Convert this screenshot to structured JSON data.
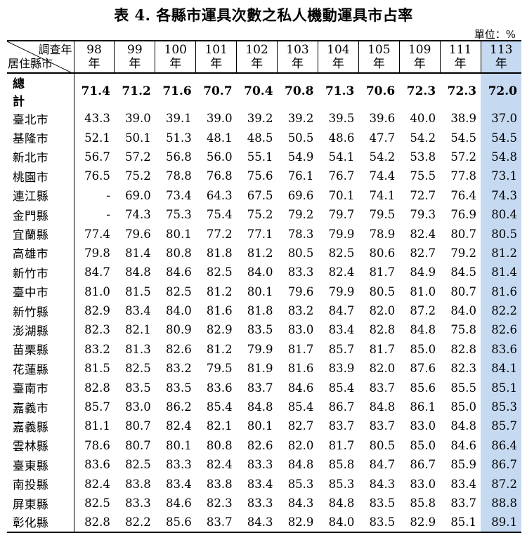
{
  "title": "表 4.  各縣市運具次數之私人機動運具市占率",
  "unit": "單位：%",
  "corner": {
    "top": "調查年",
    "bottom": "居住縣市"
  },
  "years": [
    [
      "98",
      "年"
    ],
    [
      "99",
      "年"
    ],
    [
      "100",
      "年"
    ],
    [
      "101",
      "年"
    ],
    [
      "102",
      "年"
    ],
    [
      "103",
      "年"
    ],
    [
      "104",
      "年"
    ],
    [
      "105",
      "年"
    ],
    [
      "109",
      "年"
    ],
    [
      "111",
      "年"
    ],
    [
      "113",
      "年"
    ]
  ],
  "highlight_color": "#c5d9f1",
  "rows": [
    {
      "label": "總　計",
      "values": [
        "71.4",
        "71.2",
        "71.6",
        "70.7",
        "70.4",
        "70.8",
        "71.3",
        "70.6",
        "72.3",
        "72.3",
        "72.0"
      ]
    },
    {
      "label": "臺北市",
      "values": [
        "43.3",
        "39.0",
        "39.1",
        "39.0",
        "39.2",
        "39.2",
        "39.5",
        "39.6",
        "40.0",
        "38.9",
        "37.0"
      ]
    },
    {
      "label": "基隆市",
      "values": [
        "52.1",
        "50.1",
        "51.3",
        "48.1",
        "48.5",
        "50.5",
        "48.6",
        "47.7",
        "54.2",
        "54.5",
        "54.5"
      ]
    },
    {
      "label": "新北市",
      "values": [
        "56.7",
        "57.2",
        "56.8",
        "56.0",
        "55.1",
        "54.9",
        "54.1",
        "54.2",
        "53.8",
        "57.2",
        "54.8"
      ]
    },
    {
      "label": "桃園市",
      "values": [
        "76.5",
        "75.2",
        "78.8",
        "76.8",
        "75.6",
        "76.1",
        "76.7",
        "74.4",
        "75.5",
        "77.8",
        "73.1"
      ]
    },
    {
      "label": "連江縣",
      "values": [
        "-",
        "69.0",
        "73.4",
        "64.3",
        "67.5",
        "69.6",
        "70.1",
        "74.1",
        "72.7",
        "76.4",
        "74.3"
      ]
    },
    {
      "label": "金門縣",
      "values": [
        "-",
        "74.3",
        "75.3",
        "75.4",
        "75.2",
        "79.2",
        "79.7",
        "79.5",
        "79.3",
        "76.9",
        "80.4"
      ]
    },
    {
      "label": "宜蘭縣",
      "values": [
        "77.4",
        "79.6",
        "80.1",
        "77.2",
        "77.1",
        "78.3",
        "79.9",
        "78.9",
        "82.4",
        "80.7",
        "80.5"
      ]
    },
    {
      "label": "高雄市",
      "values": [
        "79.8",
        "81.4",
        "80.8",
        "81.8",
        "81.2",
        "80.5",
        "82.5",
        "80.6",
        "82.7",
        "79.2",
        "81.2"
      ]
    },
    {
      "label": "新竹市",
      "values": [
        "84.7",
        "84.8",
        "84.6",
        "82.5",
        "84.0",
        "83.3",
        "82.4",
        "81.7",
        "84.9",
        "84.5",
        "81.4"
      ]
    },
    {
      "label": "臺中市",
      "values": [
        "81.0",
        "81.5",
        "82.5",
        "81.2",
        "80.1",
        "79.6",
        "79.9",
        "80.5",
        "81.0",
        "80.7",
        "81.6"
      ]
    },
    {
      "label": "新竹縣",
      "values": [
        "82.9",
        "83.4",
        "84.0",
        "81.6",
        "81.8",
        "83.2",
        "84.7",
        "82.0",
        "87.2",
        "84.0",
        "82.2"
      ]
    },
    {
      "label": "澎湖縣",
      "values": [
        "82.3",
        "82.1",
        "80.9",
        "82.9",
        "83.5",
        "83.0",
        "83.4",
        "82.8",
        "84.8",
        "75.8",
        "82.6"
      ]
    },
    {
      "label": "苗栗縣",
      "values": [
        "83.2",
        "81.3",
        "82.6",
        "81.2",
        "79.9",
        "81.7",
        "85.7",
        "81.7",
        "85.0",
        "82.8",
        "83.6"
      ]
    },
    {
      "label": "花蓮縣",
      "values": [
        "81.5",
        "82.5",
        "83.2",
        "79.5",
        "81.9",
        "81.6",
        "83.9",
        "82.0",
        "87.6",
        "82.3",
        "84.1"
      ]
    },
    {
      "label": "臺南市",
      "values": [
        "82.8",
        "83.5",
        "83.5",
        "83.6",
        "83.7",
        "84.6",
        "85.4",
        "83.7",
        "85.6",
        "85.5",
        "85.1"
      ]
    },
    {
      "label": "嘉義市",
      "values": [
        "85.7",
        "83.0",
        "86.2",
        "85.4",
        "84.8",
        "85.4",
        "86.7",
        "84.8",
        "86.1",
        "85.0",
        "85.3"
      ]
    },
    {
      "label": "嘉義縣",
      "values": [
        "81.1",
        "80.7",
        "82.4",
        "82.1",
        "80.1",
        "82.7",
        "83.7",
        "83.7",
        "83.0",
        "84.8",
        "85.7"
      ]
    },
    {
      "label": "雲林縣",
      "values": [
        "78.6",
        "80.7",
        "80.1",
        "80.8",
        "82.6",
        "82.0",
        "81.7",
        "80.5",
        "85.0",
        "84.6",
        "86.4"
      ]
    },
    {
      "label": "臺東縣",
      "values": [
        "83.6",
        "82.5",
        "83.3",
        "82.4",
        "83.3",
        "84.8",
        "85.8",
        "84.7",
        "86.7",
        "85.9",
        "86.7"
      ]
    },
    {
      "label": "南投縣",
      "values": [
        "82.4",
        "83.8",
        "83.4",
        "83.8",
        "83.4",
        "85.3",
        "85.3",
        "84.3",
        "83.0",
        "83.4",
        "87.2"
      ]
    },
    {
      "label": "屏東縣",
      "values": [
        "82.5",
        "83.3",
        "84.6",
        "82.3",
        "83.3",
        "84.3",
        "84.8",
        "83.5",
        "85.8",
        "83.7",
        "88.8"
      ]
    },
    {
      "label": "彰化縣",
      "values": [
        "82.8",
        "82.2",
        "85.6",
        "83.7",
        "84.3",
        "82.9",
        "84.0",
        "83.5",
        "82.9",
        "85.1",
        "89.1"
      ]
    }
  ]
}
